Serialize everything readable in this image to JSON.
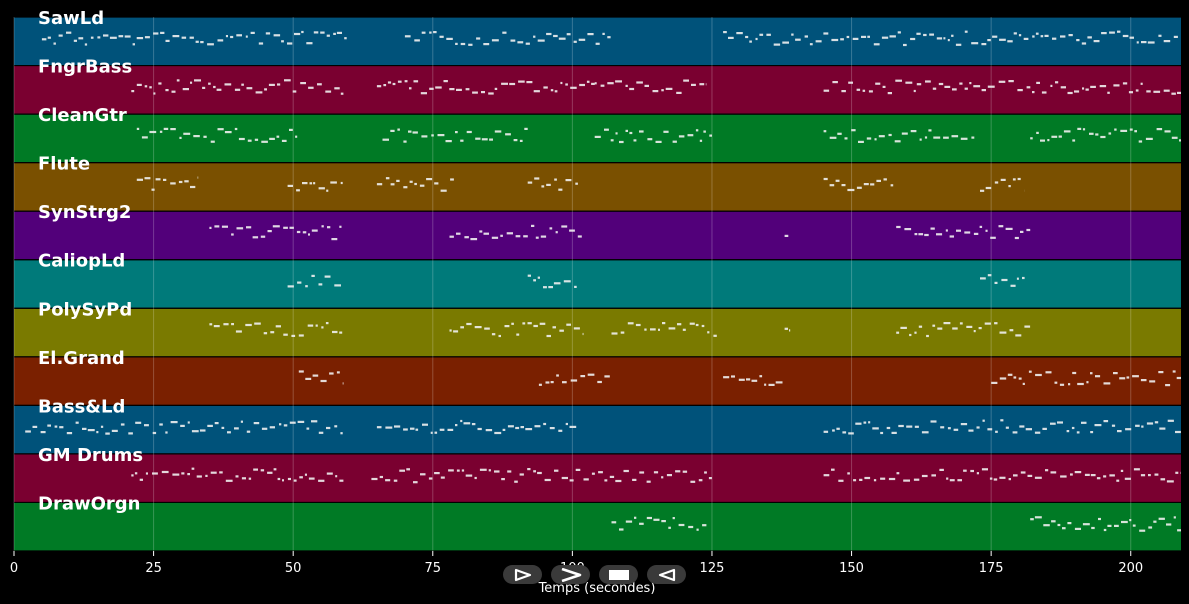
{
  "chart_data": {
    "type": "piano-roll",
    "xlabel": "Temps (secondes)",
    "xlim": [
      0,
      209
    ],
    "xticks": [
      0,
      25,
      50,
      75,
      100,
      125,
      150,
      175,
      200
    ],
    "grid": true,
    "tracks": [
      {
        "name": "SawLd",
        "color": "#00527a",
        "segments": [
          [
            5,
            60
          ],
          [
            70,
            107
          ],
          [
            127,
            209
          ]
        ]
      },
      {
        "name": "FngrBass",
        "color": "#7a0030",
        "segments": [
          [
            21,
            59
          ],
          [
            65,
            104
          ],
          [
            104,
            124
          ],
          [
            145,
            209
          ]
        ]
      },
      {
        "name": "CleanGtr",
        "color": "#007a25",
        "segments": [
          [
            22,
            51
          ],
          [
            66,
            92
          ],
          [
            104,
            125
          ],
          [
            145,
            172
          ],
          [
            182,
            209
          ]
        ]
      },
      {
        "name": "Flute",
        "color": "#7a5000",
        "segments": [
          [
            22,
            33
          ],
          [
            49,
            59
          ],
          [
            65,
            79
          ],
          [
            92,
            101
          ],
          [
            145,
            158
          ],
          [
            173,
            181
          ]
        ]
      },
      {
        "name": "SynStrg2",
        "color": "#52007a",
        "segments": [
          [
            35,
            59
          ],
          [
            78,
            102
          ],
          [
            138,
            139
          ],
          [
            158,
            182
          ]
        ]
      },
      {
        "name": "CaliopLd",
        "color": "#007a7a",
        "segments": [
          [
            49,
            59
          ],
          [
            92,
            101
          ],
          [
            173,
            181
          ]
        ]
      },
      {
        "name": "PolySyPd",
        "color": "#7a7a00",
        "segments": [
          [
            35,
            59
          ],
          [
            78,
            102
          ],
          [
            107,
            126
          ],
          [
            138,
            139
          ],
          [
            158,
            182
          ]
        ]
      },
      {
        "name": "El.Grand",
        "color": "#7a2000",
        "segments": [
          [
            51,
            59
          ],
          [
            94,
            107
          ],
          [
            127,
            138
          ],
          [
            175,
            209
          ]
        ]
      },
      {
        "name": "Bass&Ld",
        "color": "#00527a",
        "segments": [
          [
            2,
            59
          ],
          [
            65,
            101
          ],
          [
            145,
            209
          ]
        ]
      },
      {
        "name": "GM Drums",
        "color": "#7a0030",
        "segments": [
          [
            21,
            59
          ],
          [
            64,
            125
          ],
          [
            145,
            209
          ]
        ]
      },
      {
        "name": "DrawOrgn",
        "color": "#007a25",
        "segments": [
          [
            107,
            124
          ],
          [
            182,
            209
          ]
        ]
      }
    ]
  },
  "controls": [
    {
      "icon": "play-outline-icon"
    },
    {
      "icon": "fast-forward-icon"
    },
    {
      "icon": "stop-icon"
    },
    {
      "icon": "rewind-icon"
    }
  ]
}
